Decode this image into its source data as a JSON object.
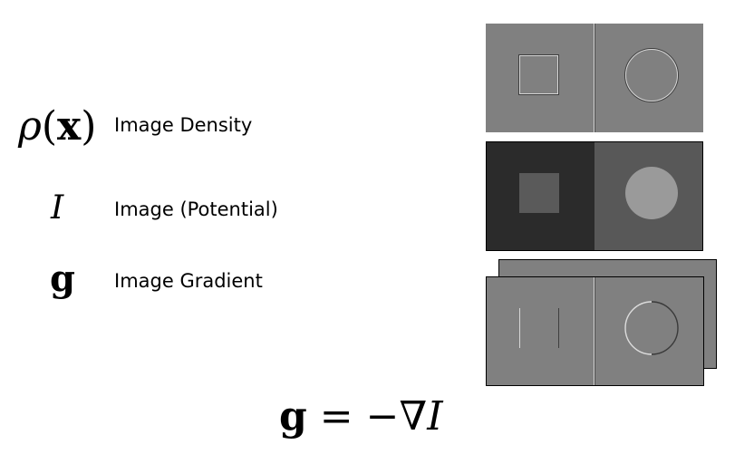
{
  "rows": [
    {
      "symbol_greek": "ρ",
      "symbol_open": "(",
      "symbol_var": "x",
      "symbol_close": ")",
      "label": "Image Density"
    },
    {
      "symbol": "I",
      "label": "Image (Potential)"
    },
    {
      "symbol": "g",
      "label": "Image Gradient"
    }
  ],
  "equation": {
    "lhs": "g",
    "op": "=",
    "rhs_sign": "−",
    "rhs_nabla": "∇",
    "rhs_var": "I"
  },
  "panels": {
    "density": {
      "left_bg": "#808080",
      "right_bg": "#808080"
    },
    "potential": {
      "left_bg": "#2b2b2b",
      "right_bg": "#585858",
      "square_fill": "#5a5a5a",
      "circle_fill": "#9a9a9a"
    },
    "gradient": {
      "bg": "#808080"
    }
  }
}
